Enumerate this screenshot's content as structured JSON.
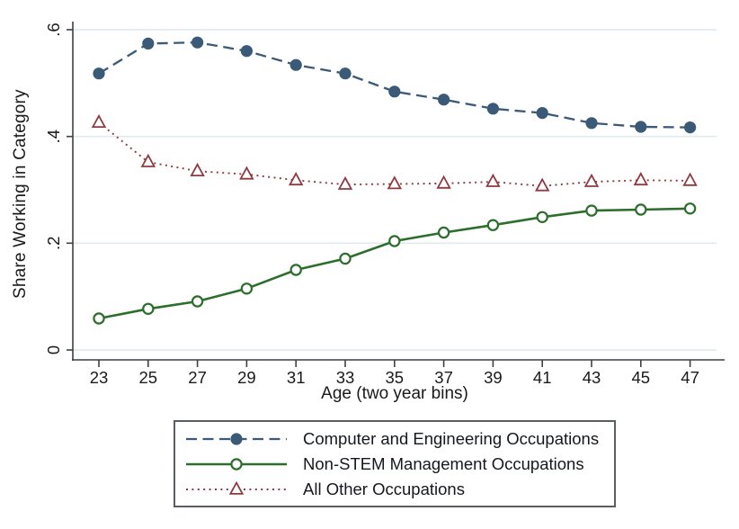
{
  "chart_data": {
    "type": "line",
    "title": "",
    "xlabel": "Age (two year bins)",
    "ylabel": "Share Working in Category",
    "x": [
      23,
      25,
      27,
      29,
      31,
      33,
      35,
      37,
      39,
      41,
      43,
      45,
      47
    ],
    "xtick_labels": [
      "23",
      "25",
      "27",
      "29",
      "31",
      "33",
      "35",
      "37",
      "39",
      "41",
      "43",
      "45",
      "47"
    ],
    "ylim": [
      0,
      0.6
    ],
    "yticks": [
      0,
      0.2,
      0.4,
      0.6
    ],
    "ytick_labels": [
      "0",
      ".2",
      ".4",
      ".6"
    ],
    "grid": "horizontal",
    "legend_position": "bottom",
    "series": [
      {
        "name": "Computer and Engineering Occupations",
        "color": "#3a5a78",
        "line": "dashed",
        "marker": "filled-circle",
        "values": [
          0.518,
          0.574,
          0.576,
          0.56,
          0.534,
          0.518,
          0.484,
          0.469,
          0.452,
          0.444,
          0.425,
          0.418,
          0.417
        ]
      },
      {
        "name": "Non-STEM Management Occupations",
        "color": "#2c6e2c",
        "line": "solid",
        "marker": "open-circle",
        "values": [
          0.059,
          0.077,
          0.091,
          0.115,
          0.15,
          0.171,
          0.204,
          0.22,
          0.234,
          0.249,
          0.261,
          0.263,
          0.265
        ]
      },
      {
        "name": "All Other Occupations",
        "color": "#8f3a42",
        "line": "dotted",
        "marker": "open-triangle",
        "values": [
          0.426,
          0.352,
          0.335,
          0.329,
          0.318,
          0.31,
          0.311,
          0.312,
          0.315,
          0.307,
          0.315,
          0.318,
          0.317
        ]
      }
    ]
  },
  "colors": {
    "background": "#ffffff",
    "gridline": "#e3eaee",
    "axis": "#3f3f3f",
    "text": "#1a1a1a",
    "legend_border": "#5a5e62"
  }
}
